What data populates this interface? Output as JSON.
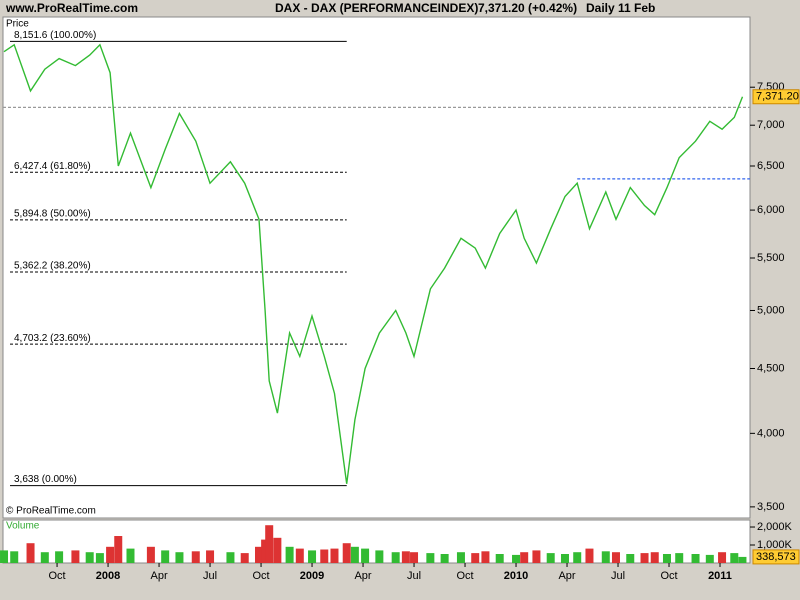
{
  "header": {
    "site": "www.ProRealTime.com",
    "instrument": "DAX - DAX (PERFORMANCEINDEX)",
    "quote": "7,371.20 (+0.42%)",
    "period": "Daily  11 Feb"
  },
  "chart_data": {
    "type": "line",
    "price_label": "Price",
    "volume_label": "Volume",
    "copyright": "© ProRealTime.com",
    "log_scale": true,
    "color": "#33bb33",
    "down_color": "#dd3333",
    "x": [
      2007.49,
      2007.54,
      2007.62,
      2007.69,
      2007.76,
      2007.84,
      2007.91,
      2007.96,
      2008.01,
      2008.05,
      2008.11,
      2008.21,
      2008.28,
      2008.35,
      2008.43,
      2008.5,
      2008.6,
      2008.67,
      2008.74,
      2008.77,
      2008.79,
      2008.83,
      2008.89,
      2008.94,
      2009.0,
      2009.06,
      2009.11,
      2009.17,
      2009.21,
      2009.26,
      2009.33,
      2009.41,
      2009.46,
      2009.5,
      2009.58,
      2009.65,
      2009.73,
      2009.8,
      2009.85,
      2009.92,
      2010.0,
      2010.04,
      2010.1,
      2010.17,
      2010.24,
      2010.3,
      2010.36,
      2010.44,
      2010.49,
      2010.56,
      2010.63,
      2010.68,
      2010.74,
      2010.8,
      2010.88,
      2010.95,
      2011.01,
      2011.07,
      2011.11
    ],
    "series": [
      {
        "name": "DAX",
        "values": [
          8000,
          8100,
          7450,
          7750,
          7900,
          7800,
          7950,
          8100,
          7700,
          6500,
          6900,
          6250,
          6700,
          7150,
          6800,
          6300,
          6550,
          6300,
          5900,
          5000,
          4400,
          4150,
          4800,
          4600,
          4950,
          4600,
          4300,
          3650,
          4100,
          4500,
          4800,
          5000,
          4800,
          4600,
          5200,
          5400,
          5700,
          5600,
          5400,
          5750,
          6000,
          5700,
          5450,
          5800,
          6150,
          6300,
          5800,
          6200,
          5900,
          6250,
          6050,
          5950,
          6250,
          6600,
          6800,
          7050,
          6950,
          7100,
          7371.2
        ]
      },
      {
        "name": "Volume",
        "axis": "y2",
        "values": [
          700000,
          650000,
          1100000,
          600000,
          650000,
          700000,
          600000,
          550000,
          900000,
          1500000,
          800000,
          900000,
          700000,
          600000,
          650000,
          700000,
          600000,
          550000,
          900000,
          1300000,
          2100000,
          1400000,
          900000,
          800000,
          700000,
          750000,
          800000,
          1100000,
          900000,
          800000,
          700000,
          600000,
          650000,
          600000,
          550000,
          500000,
          600000,
          550000,
          650000,
          500000,
          450000,
          600000,
          700000,
          550000,
          500000,
          600000,
          800000,
          650000,
          600000,
          500000,
          550000,
          600000,
          500000,
          550000,
          500000,
          450000,
          600000,
          550000,
          338573
        ]
      }
    ],
    "xlim": [
      2007.485,
      2011.147
    ],
    "xticks": [
      {
        "value": 2007.75,
        "label": "Oct"
      },
      {
        "value": 2008.0,
        "label": "2008"
      },
      {
        "value": 2008.25,
        "label": "Apr"
      },
      {
        "value": 2008.5,
        "label": "Jul"
      },
      {
        "value": 2008.75,
        "label": "Oct"
      },
      {
        "value": 2009.0,
        "label": "2009"
      },
      {
        "value": 2009.25,
        "label": "Apr"
      },
      {
        "value": 2009.5,
        "label": "Jul"
      },
      {
        "value": 2009.75,
        "label": "Oct"
      },
      {
        "value": 2010.0,
        "label": "2010"
      },
      {
        "value": 2010.25,
        "label": "Apr"
      },
      {
        "value": 2010.5,
        "label": "Jul"
      },
      {
        "value": 2010.75,
        "label": "Oct"
      },
      {
        "value": 2011.0,
        "label": "2011"
      }
    ],
    "ylim": [
      3430,
      8520
    ],
    "yticks": [
      {
        "value": 3500,
        "label": "3,500"
      },
      {
        "value": 4000,
        "label": "4,000"
      },
      {
        "value": 4500,
        "label": "4,500"
      },
      {
        "value": 5000,
        "label": "5,000"
      },
      {
        "value": 5500,
        "label": "5,500"
      },
      {
        "value": 6000,
        "label": "6,000"
      },
      {
        "value": 6500,
        "label": "6,500"
      },
      {
        "value": 7000,
        "label": "7,000"
      },
      {
        "value": 7500,
        "label": "7,500"
      }
    ],
    "y2lim": [
      0,
      2390000
    ],
    "y2ticks": [
      {
        "value": 1000000,
        "label": "1,000K"
      },
      {
        "value": 2000000,
        "label": "2,000K"
      }
    ],
    "last_price": {
      "value": 7371.2,
      "label": "7,371.20"
    },
    "last_volume": {
      "value": 338573,
      "label": "338,573"
    },
    "fibonacci": [
      {
        "value": 8151.6,
        "label": "8,151.6 (100.00%)",
        "dashed": false
      },
      {
        "value": 6427.4,
        "label": "6,427.4 (61.80%)",
        "dashed": true
      },
      {
        "value": 5894.8,
        "label": "5,894.8 (50.00%)",
        "dashed": true
      },
      {
        "value": 5362.2,
        "label": "5,362.2 (38.20%)",
        "dashed": true
      },
      {
        "value": 4703.2,
        "label": "4,703.2 (23.60%)",
        "dashed": true
      },
      {
        "value": 3638,
        "label": "3,638 (0.00%)",
        "dashed": false
      }
    ],
    "fib_end": 2009.17,
    "reference_lines": [
      {
        "value": 7230,
        "color": "#999999",
        "start": 2007.485
      },
      {
        "value": 6350,
        "color": "#3366ee",
        "start": 2010.3
      }
    ]
  }
}
